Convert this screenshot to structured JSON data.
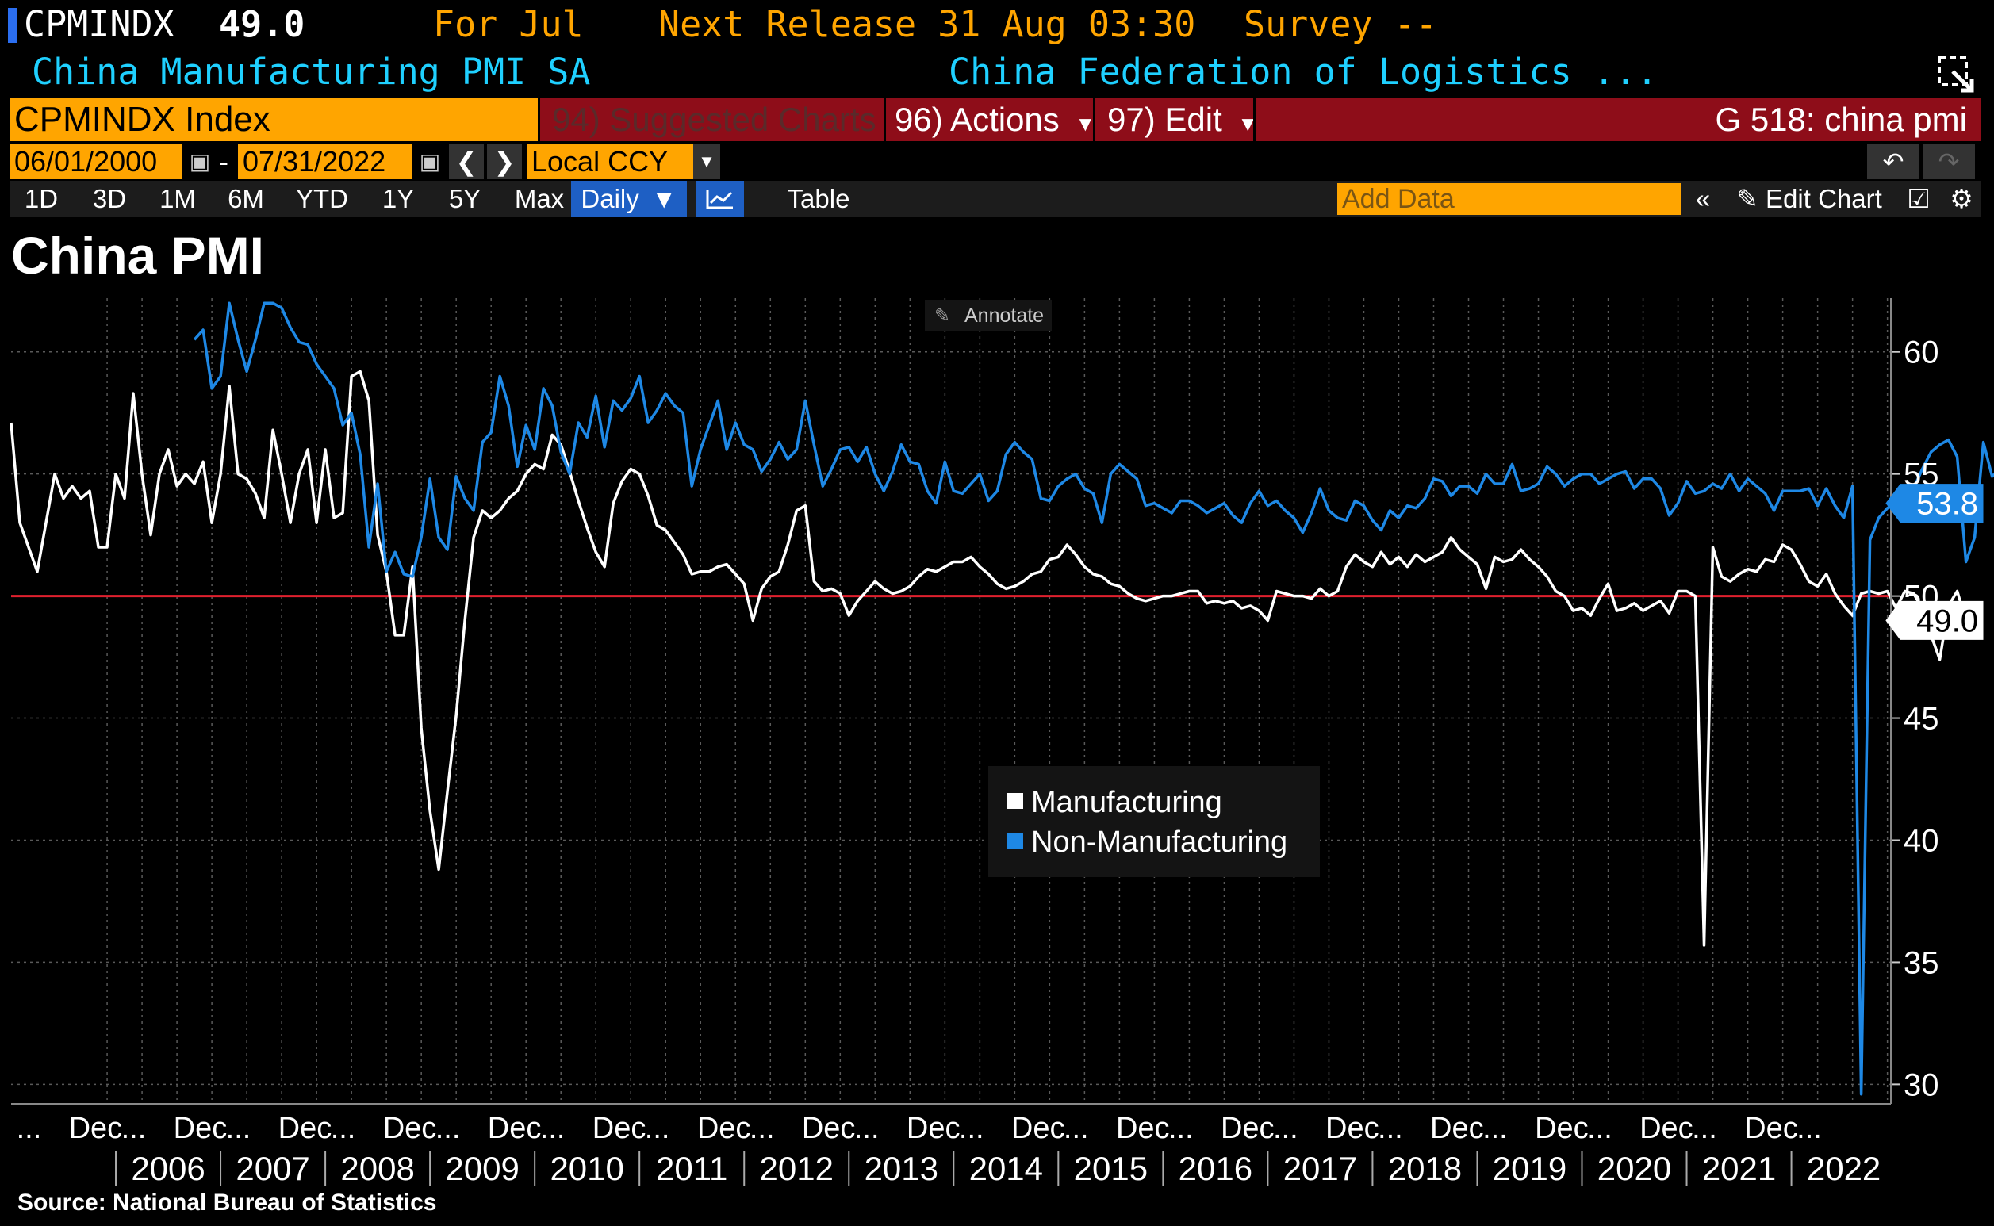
{
  "header": {
    "ticker": "CPMINDX",
    "last_value": "49.0",
    "period": "For Jul",
    "next_release": "Next Release 31 Aug 03:30",
    "survey": "Survey --",
    "description": "China Manufacturing PMI SA",
    "source_org": "China Federation of Logistics ..."
  },
  "command_bar": {
    "security": "CPMINDX Index",
    "suggested_charts": "94) Suggested Charts",
    "actions": "96) Actions",
    "edit": "97) Edit",
    "chart_id": "G 518: china pmi"
  },
  "date_range": {
    "start": "06/01/2000",
    "end": "07/31/2022",
    "dash": "-",
    "currency": "Local CCY"
  },
  "range_bar": {
    "buttons": [
      "1D",
      "3D",
      "1M",
      "6M",
      "YTD",
      "1Y",
      "5Y",
      "Max"
    ],
    "frequency": "Daily",
    "table_label": "Table",
    "add_data_placeholder": "Add Data",
    "edit_chart": "Edit Chart"
  },
  "annotate_label": "Annotate",
  "source_text": "Source: National Bureau of Statistics",
  "colors": {
    "manufacturing": "#ffffff",
    "non_manufacturing": "#1e88e5",
    "threshold": "#e0202e",
    "header_accent": "#ffa500",
    "header_cyan": "#1fd0ff",
    "command_red": "#8e0d19"
  },
  "chart_data": {
    "type": "line",
    "title": "China PMI",
    "x_axis": {
      "range": [
        2005.0,
        2022.95
      ],
      "month_labels": [
        "...",
        "Dec",
        "...",
        "Dec",
        "...",
        "Dec",
        "...",
        "Dec",
        "...",
        "Dec",
        "...",
        "Dec",
        "...",
        "Dec",
        "...",
        "Dec",
        "...",
        "Dec",
        "...",
        "Dec",
        "...",
        "Dec",
        "...",
        "Dec",
        "...",
        "Dec",
        "...",
        "Dec",
        "...",
        "Dec",
        "...",
        "Dec",
        "...",
        "Dec",
        "..."
      ],
      "year_labels": [
        "2006",
        "2007",
        "2008",
        "2009",
        "2010",
        "2011",
        "2012",
        "2013",
        "2014",
        "2015",
        "2016",
        "2017",
        "2018",
        "2019",
        "2020",
        "2021",
        "2022"
      ]
    },
    "y_axis": {
      "range": [
        29.2,
        62.2
      ],
      "ticks": [
        30,
        35,
        40,
        45,
        50,
        55,
        60
      ],
      "position": "right"
    },
    "reference_line": 50,
    "legend": {
      "placement": "center",
      "entries": [
        "Manufacturing",
        "Non-Manufacturing"
      ]
    },
    "last_labels": {
      "manufacturing": "49.0",
      "non_manufacturing": "53.8"
    },
    "series": [
      {
        "name": "Manufacturing",
        "start": 2005.0,
        "step_months": 1,
        "values": [
          57.1,
          53.0,
          52.0,
          51.0,
          53.0,
          55.0,
          54.0,
          54.5,
          54.0,
          54.3,
          52.0,
          52.0,
          55.0,
          54.0,
          58.3,
          55.0,
          52.5,
          55.0,
          56.0,
          54.5,
          55.0,
          54.6,
          55.5,
          53.0,
          55.0,
          58.6,
          55.0,
          54.8,
          54.2,
          53.2,
          56.8,
          55.0,
          53.0,
          55.0,
          56.0,
          53.0,
          56.0,
          53.2,
          53.4,
          59.0,
          59.2,
          58.0,
          52.5,
          51.0,
          48.4,
          48.4,
          51.2,
          44.6,
          41.2,
          38.8,
          42.0,
          45.1,
          49.0,
          52.4,
          53.5,
          53.2,
          53.5,
          54.0,
          54.3,
          55.0,
          55.4,
          55.2,
          56.6,
          56.2,
          55.1,
          53.9,
          52.8,
          51.8,
          51.2,
          53.8,
          54.7,
          55.2,
          55.0,
          54.1,
          52.9,
          52.7,
          52.2,
          51.7,
          50.9,
          51.0,
          51.0,
          51.2,
          51.3,
          50.9,
          50.5,
          49.0,
          50.3,
          50.8,
          51.0,
          52.1,
          53.5,
          53.7,
          50.6,
          50.2,
          50.3,
          50.1,
          49.2,
          49.8,
          50.2,
          50.6,
          50.3,
          50.1,
          50.2,
          50.4,
          50.8,
          51.1,
          51.0,
          51.2,
          51.4,
          51.4,
          51.6,
          51.2,
          50.9,
          50.5,
          50.3,
          50.4,
          50.6,
          50.9,
          51.0,
          51.5,
          51.6,
          52.1,
          51.7,
          51.2,
          50.9,
          50.8,
          50.5,
          50.4,
          50.1,
          49.9,
          49.8,
          49.9,
          50.0,
          50.0,
          50.1,
          50.2,
          50.2,
          49.7,
          49.8,
          49.7,
          49.8,
          49.5,
          49.6,
          49.4,
          49.0,
          50.2,
          50.1,
          50.0,
          50.0,
          49.9,
          50.3,
          50.0,
          50.2,
          51.2,
          51.7,
          51.4,
          51.2,
          51.8,
          51.3,
          51.6,
          51.2,
          51.7,
          51.4,
          51.6,
          51.8,
          52.4,
          51.9,
          51.6,
          51.3,
          50.3,
          51.6,
          51.4,
          51.5,
          51.9,
          51.5,
          51.2,
          50.8,
          50.2,
          50.0,
          49.4,
          49.5,
          49.2,
          49.9,
          50.5,
          49.4,
          49.5,
          49.7,
          49.4,
          49.6,
          49.8,
          49.3,
          50.2,
          50.2,
          50.0,
          35.7,
          52.0,
          50.8,
          50.6,
          50.9,
          51.1,
          51.0,
          51.5,
          51.4,
          52.1,
          51.9,
          51.3,
          50.6,
          50.4,
          50.9,
          50.1,
          49.6,
          49.2,
          50.1,
          50.2,
          50.1,
          50.2,
          49.5,
          50.2,
          50.1,
          49.5,
          48.4,
          47.4,
          49.6,
          50.2,
          49.0
        ]
      },
      {
        "name": "Non-Manufacturing",
        "start": 2006.75,
        "step_months": 1,
        "values": [
          60.5,
          60.9,
          58.5,
          59.0,
          62.0,
          60.5,
          59.2,
          60.5,
          62.0,
          62.0,
          61.8,
          61.0,
          60.4,
          60.3,
          59.5,
          59.0,
          58.5,
          57.0,
          57.5,
          55.8,
          52.0,
          54.6,
          51.0,
          51.8,
          50.9,
          50.8,
          52.4,
          54.8,
          52.4,
          51.9,
          54.9,
          54.0,
          53.5,
          56.3,
          56.7,
          59.0,
          57.8,
          55.3,
          57.0,
          56.0,
          58.5,
          57.8,
          55.9,
          55.0,
          57.1,
          56.5,
          58.2,
          56.1,
          58.0,
          57.6,
          58.1,
          59.0,
          57.1,
          57.6,
          58.3,
          57.8,
          57.5,
          54.5,
          56.0,
          57.0,
          58.0,
          56.0,
          57.1,
          56.2,
          56.0,
          55.1,
          55.6,
          56.3,
          55.6,
          56.0,
          58.0,
          56.2,
          54.5,
          55.2,
          56.0,
          56.1,
          55.5,
          56.1,
          55.0,
          54.3,
          55.1,
          56.2,
          55.5,
          55.4,
          54.3,
          53.8,
          55.5,
          54.3,
          54.2,
          54.6,
          55.0,
          53.9,
          54.3,
          55.8,
          56.3,
          55.9,
          55.6,
          54.0,
          53.9,
          54.5,
          54.8,
          55.0,
          54.4,
          54.2,
          53.0,
          55.0,
          55.4,
          55.1,
          54.8,
          53.7,
          53.8,
          53.6,
          53.4,
          53.9,
          53.9,
          53.7,
          53.4,
          53.6,
          53.8,
          53.3,
          53.0,
          53.8,
          54.3,
          53.7,
          53.9,
          53.5,
          53.2,
          52.6,
          53.4,
          54.4,
          53.5,
          53.2,
          53.1,
          53.9,
          53.7,
          53.1,
          52.7,
          53.5,
          53.2,
          53.7,
          53.6,
          54.0,
          54.8,
          54.7,
          54.1,
          54.5,
          54.5,
          54.2,
          55.0,
          54.6,
          54.6,
          55.4,
          54.3,
          54.4,
          54.6,
          55.3,
          55.0,
          54.5,
          54.8,
          55.0,
          55.0,
          54.6,
          54.8,
          55.0,
          55.1,
          54.4,
          54.8,
          54.8,
          54.4,
          53.3,
          53.8,
          54.7,
          54.2,
          54.3,
          54.6,
          54.4,
          55.0,
          54.3,
          54.8,
          54.5,
          54.2,
          53.5,
          54.3,
          54.3,
          54.3,
          54.4,
          53.7,
          54.4,
          53.7,
          53.2,
          54.5,
          29.6,
          52.3,
          53.2,
          53.6,
          53.8,
          54.2,
          54.4,
          55.2,
          55.9,
          56.2,
          56.4,
          55.7,
          51.4,
          52.4,
          56.3,
          54.9,
          55.2,
          53.5,
          53.3,
          47.5,
          51.6,
          53.2,
          52.4,
          52.3,
          52.7,
          51.1,
          51.1,
          52.3,
          51.6,
          48.4,
          41.9,
          47.8,
          54.7,
          53.8
        ]
      }
    ]
  }
}
